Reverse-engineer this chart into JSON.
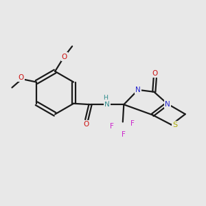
{
  "bg_color": "#e8e8e8",
  "bond_color": "#1a1a1a",
  "atom_colors": {
    "C": "#1a1a1a",
    "H": "#2e8b8b",
    "N": "#2222cc",
    "O": "#cc1111",
    "S": "#aaaa00",
    "F": "#cc22cc"
  },
  "figsize": [
    3.0,
    3.0
  ],
  "dpi": 100
}
